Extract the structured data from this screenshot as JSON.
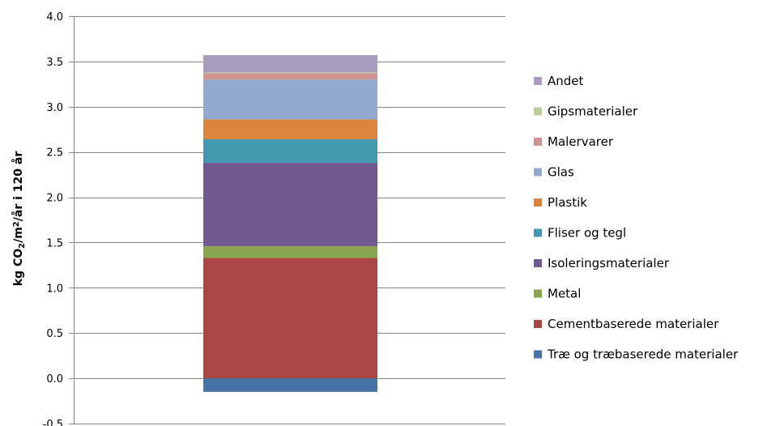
{
  "chart_data": {
    "type": "bar",
    "stacked": true,
    "categories": [
      ""
    ],
    "ylabel": {
      "prefix": "kg CO",
      "sub": "2",
      "middle": "/m",
      "sup": "2",
      "suffix": "/år i 120 år"
    },
    "ylim": [
      -0.5,
      4.0
    ],
    "yticks": [
      "4.0",
      "3.5",
      "3.0",
      "2.5",
      "2.0",
      "1.5",
      "1.0",
      "0.5",
      "0.0",
      "-0.5"
    ],
    "ytick_values": [
      4.0,
      3.5,
      3.0,
      2.5,
      2.0,
      1.5,
      1.0,
      0.5,
      0.0,
      -0.5
    ],
    "grid": true,
    "legend_position": "right",
    "series": [
      {
        "name": "Træ og træbaserede materialer",
        "values": [
          -0.15
        ],
        "color": "#4572a7"
      },
      {
        "name": "Cementbaserede materialer",
        "values": [
          1.33
        ],
        "color": "#aa4643"
      },
      {
        "name": "Metal",
        "values": [
          0.13
        ],
        "color": "#89a54e"
      },
      {
        "name": "Isoleringsmaterialer",
        "values": [
          0.92
        ],
        "color": "#71588f"
      },
      {
        "name": "Fliser og tegl",
        "values": [
          0.26
        ],
        "color": "#4198af"
      },
      {
        "name": "Plastik",
        "values": [
          0.22
        ],
        "color": "#db843d"
      },
      {
        "name": "Glas",
        "values": [
          0.44
        ],
        "color": "#93a9cf"
      },
      {
        "name": "Malervarer",
        "values": [
          0.07
        ],
        "color": "#d19392"
      },
      {
        "name": "Gipsmaterialer",
        "values": [
          0.01
        ],
        "color": "#b9cd96"
      },
      {
        "name": "Andet",
        "values": [
          0.19
        ],
        "color": "#a99bbd"
      }
    ]
  }
}
